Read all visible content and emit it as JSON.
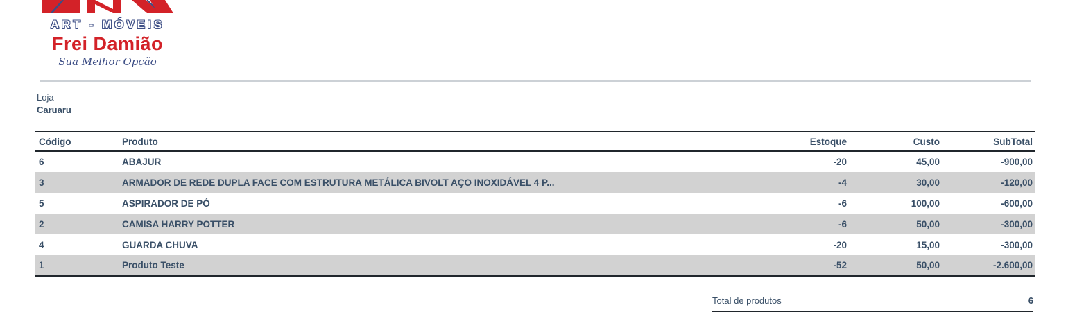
{
  "logo": {
    "line1": "ART - MÓVEIS",
    "line2": "Frei Damião",
    "line3": "Sua Melhor Opção"
  },
  "store": {
    "label": "Loja",
    "name": "Caruaru"
  },
  "table": {
    "headers": [
      "Código",
      "Produto",
      "Estoque",
      "Custo",
      "SubTotal"
    ],
    "rows": [
      {
        "codigo": "6",
        "produto": "ABAJUR",
        "estoque": "-20",
        "custo": "45,00",
        "subtotal": "-900,00"
      },
      {
        "codigo": "3",
        "produto": "ARMADOR DE REDE DUPLA FACE COM ESTRUTURA METÁLICA BIVOLT AÇO INOXIDÁVEL 4 P...",
        "estoque": "-4",
        "custo": "30,00",
        "subtotal": "-120,00"
      },
      {
        "codigo": "5",
        "produto": "ASPIRADOR DE PÓ",
        "estoque": "-6",
        "custo": "100,00",
        "subtotal": "-600,00"
      },
      {
        "codigo": "2",
        "produto": "CAMISA HARRY POTTER",
        "estoque": "-6",
        "custo": "50,00",
        "subtotal": "-300,00"
      },
      {
        "codigo": "4",
        "produto": "GUARDA CHUVA",
        "estoque": "-20",
        "custo": "15,00",
        "subtotal": "-300,00"
      },
      {
        "codigo": "1",
        "produto": "Produto Teste",
        "estoque": "-52",
        "custo": "50,00",
        "subtotal": "-2.600,00"
      }
    ]
  },
  "footer": {
    "label": "Total de produtos",
    "value": "6"
  },
  "colors": {
    "text_navy": "#394f67",
    "logo_red": "#d32228",
    "logo_navy": "#3c4d85",
    "stripe_gray": "#d2d2d2",
    "border_dark": "#20262c",
    "rule_light": "#ccd1d6"
  }
}
